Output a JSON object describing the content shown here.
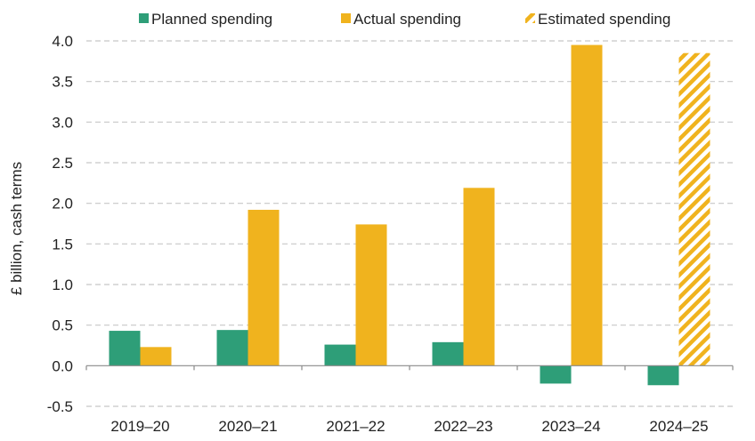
{
  "chart_data": {
    "type": "bar",
    "title": "",
    "xlabel": "",
    "ylabel": "£ billion, cash terms",
    "ylim": [
      -0.5,
      4.0
    ],
    "yticks": [
      "4.0",
      "3.5",
      "3.0",
      "2.5",
      "2.0",
      "1.5",
      "1.0",
      "0.5",
      "0.0",
      "-0.5"
    ],
    "ytick_values": [
      4.0,
      3.5,
      3.0,
      2.5,
      2.0,
      1.5,
      1.0,
      0.5,
      0.0,
      -0.5
    ],
    "grid": true,
    "legend_position": "top",
    "categories": [
      "2019–20",
      "2020–21",
      "2021–22",
      "2022–23",
      "2023–24",
      "2024–25"
    ],
    "series": [
      {
        "name": "Planned spending",
        "color": "#2e9e78",
        "style": "solid",
        "values": [
          0.43,
          0.44,
          0.26,
          0.29,
          -0.22,
          -0.24
        ]
      },
      {
        "name": "Actual spending",
        "color": "#f0b31e",
        "style": "solid",
        "values": [
          0.23,
          1.92,
          1.74,
          2.19,
          3.95,
          null
        ]
      },
      {
        "name": "Estimated spending",
        "color": "#f0b31e",
        "style": "hatched",
        "values": [
          null,
          null,
          null,
          null,
          null,
          3.85
        ]
      }
    ]
  }
}
